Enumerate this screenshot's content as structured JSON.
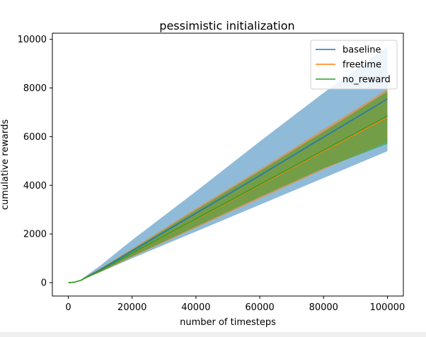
{
  "chart_data": {
    "type": "line",
    "title": "pessimistic initialization",
    "xlabel": "number of timesteps",
    "ylabel": "cumulative rewards",
    "xlim": [
      -5000,
      105000
    ],
    "ylim": [
      -550,
      10250
    ],
    "xticks": [
      0,
      20000,
      40000,
      60000,
      80000,
      100000
    ],
    "yticks": [
      0,
      2000,
      4000,
      6000,
      8000,
      10000
    ],
    "xtick_labels": [
      "0",
      "20000",
      "40000",
      "60000",
      "80000",
      "100000"
    ],
    "ytick_labels": [
      "0",
      "2000",
      "4000",
      "6000",
      "8000",
      "10000"
    ],
    "legend_position": "top-right",
    "grid": false,
    "series": [
      {
        "name": "baseline",
        "color": "#1f77b4",
        "x": [
          0,
          2000,
          4000,
          6000,
          10000,
          20000,
          40000,
          60000,
          80000,
          100000
        ],
        "y": [
          0,
          20,
          100,
          250,
          530,
          1300,
          2850,
          4400,
          5980,
          7550
        ],
        "lower": [
          0,
          15,
          80,
          200,
          430,
          1000,
          2100,
          3200,
          4300,
          5400
        ],
        "upper": [
          0,
          25,
          130,
          320,
          700,
          1750,
          3750,
          5800,
          7800,
          9700
        ]
      },
      {
        "name": "freetime",
        "color": "#ff7f0e",
        "x": [
          0,
          2000,
          4000,
          6000,
          10000,
          20000,
          40000,
          60000,
          80000,
          100000
        ],
        "y": [
          0,
          20,
          100,
          240,
          490,
          1200,
          2600,
          4000,
          5400,
          6800
        ],
        "lower": [
          0,
          15,
          85,
          210,
          430,
          1050,
          2250,
          3450,
          4650,
          5800
        ],
        "upper": [
          0,
          25,
          120,
          290,
          590,
          1400,
          3050,
          4650,
          6300,
          7950
        ]
      },
      {
        "name": "no_reward",
        "color": "#2ca02c",
        "x": [
          0,
          2000,
          4000,
          6000,
          10000,
          20000,
          40000,
          60000,
          80000,
          100000
        ],
        "y": [
          0,
          20,
          100,
          240,
          490,
          1210,
          2620,
          4030,
          5440,
          6850
        ],
        "lower": [
          0,
          15,
          85,
          210,
          440,
          1080,
          2300,
          3520,
          4700,
          5700
        ],
        "upper": [
          0,
          25,
          120,
          280,
          570,
          1360,
          2980,
          4580,
          6200,
          7850
        ]
      }
    ]
  }
}
